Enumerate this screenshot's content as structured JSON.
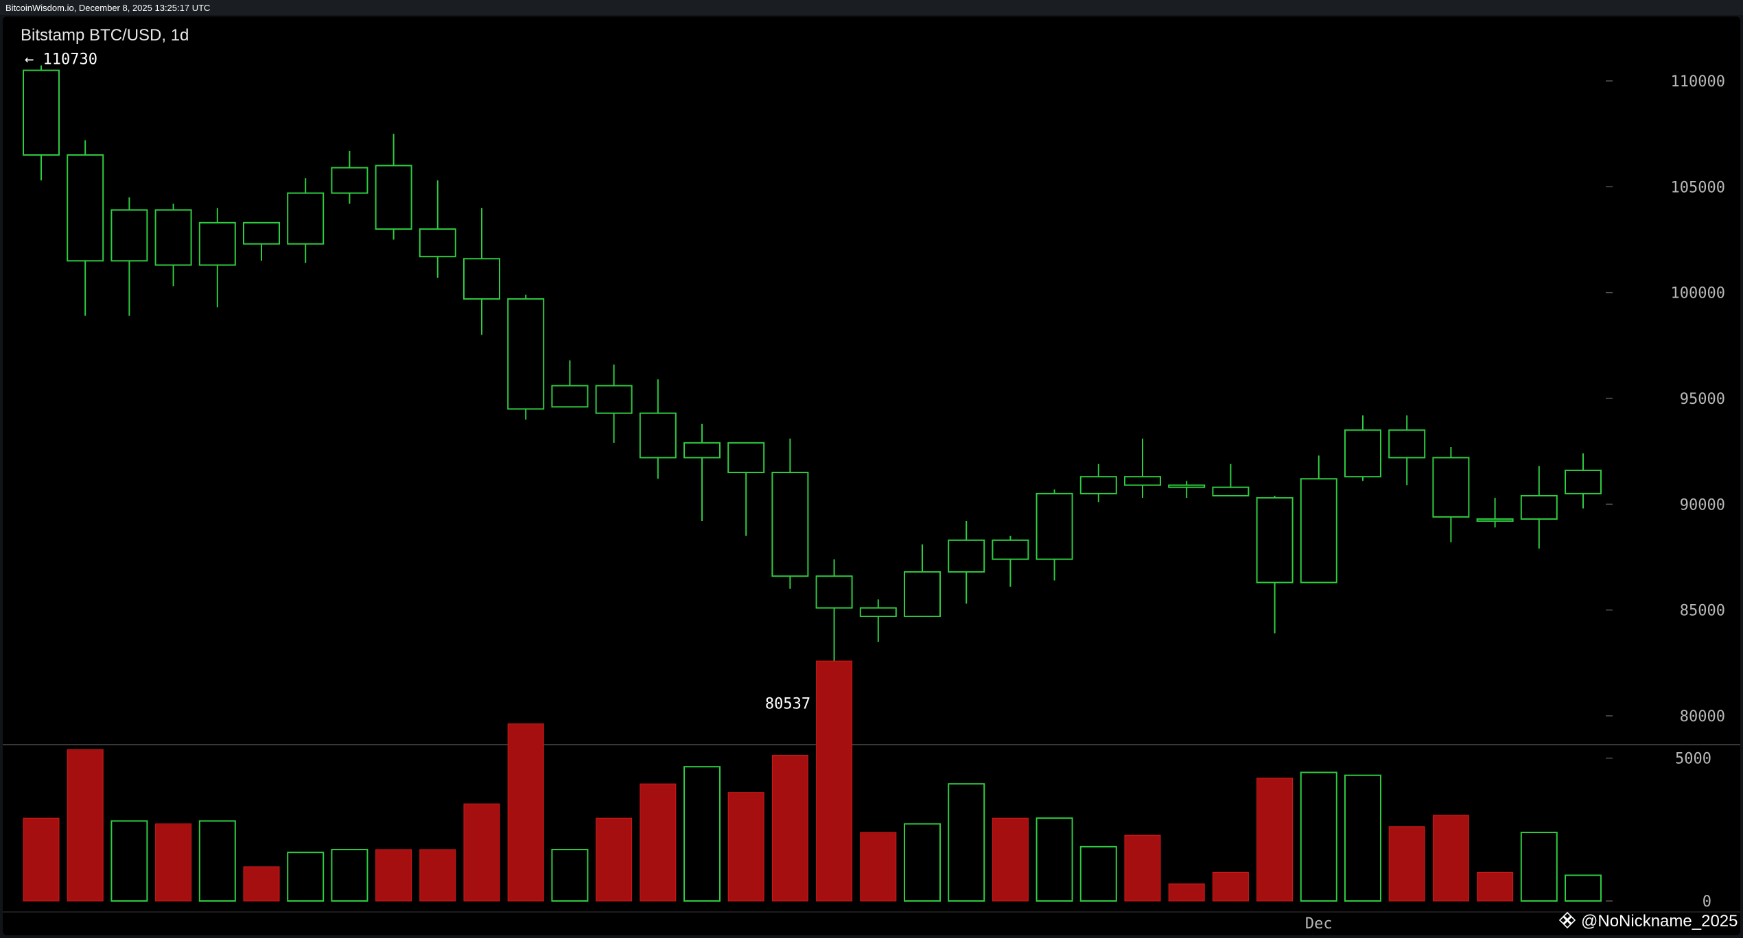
{
  "header": {
    "source_line": "BitcoinWisdom.io, December 8, 2025 13:25:17 UTC"
  },
  "chart": {
    "pair_title": "Bitstamp BTC/USD, 1d",
    "high_annotation": "← 110730",
    "low_annotation": "80537 →",
    "x_tick_label": "Dec",
    "watermark": "@NoNickname_2025",
    "watermark_icon": "diamond-logo-icon"
  },
  "colors": {
    "background": "#000000",
    "up": "#2ecc40",
    "down": "#a50f0f",
    "down_wick": "#d41a1a",
    "axis_text": "#b8b8b8"
  },
  "chart_data": [
    {
      "type": "candlestick",
      "title": "Bitstamp BTC/USD, 1d",
      "y_axis_side": "right",
      "ylim": [
        77500,
        113000
      ],
      "yticks": [
        80000,
        85000,
        90000,
        95000,
        100000,
        105000,
        110000
      ],
      "ytick_labels": [
        "80000",
        "85000",
        "90000",
        "95000",
        "100000",
        "105000",
        "110000"
      ],
      "x_tick": {
        "label": "Dec",
        "at_index": 29
      },
      "annotations": [
        {
          "label": "← 110730",
          "value": 110730,
          "index": 0
        },
        {
          "label": "80537 →",
          "value": 80537,
          "index": 18
        }
      ],
      "candles": [
        {
          "open": 106500,
          "high": 110730,
          "low": 105300,
          "close": 110500
        },
        {
          "open": 101500,
          "high": 107200,
          "low": 98900,
          "close": 106500
        },
        {
          "open": 101500,
          "high": 104500,
          "low": 98900,
          "close": 103900
        },
        {
          "open": 101300,
          "high": 104200,
          "low": 100300,
          "close": 103900
        },
        {
          "open": 101300,
          "high": 104000,
          "low": 99300,
          "close": 103300
        },
        {
          "open": 102300,
          "high": 103300,
          "low": 101500,
          "close": 103300
        },
        {
          "open": 102300,
          "high": 105400,
          "low": 101400,
          "close": 104700
        },
        {
          "open": 104700,
          "high": 106700,
          "low": 104200,
          "close": 105900
        },
        {
          "open": 103000,
          "high": 107500,
          "low": 102500,
          "close": 106000
        },
        {
          "open": 101700,
          "high": 105300,
          "low": 100700,
          "close": 103000
        },
        {
          "open": 99700,
          "high": 104000,
          "low": 98000,
          "close": 101600
        },
        {
          "open": 94500,
          "high": 99900,
          "low": 94000,
          "close": 99700
        },
        {
          "open": 94600,
          "high": 96800,
          "low": 94600,
          "close": 95600
        },
        {
          "open": 94300,
          "high": 96600,
          "low": 92900,
          "close": 95600
        },
        {
          "open": 92200,
          "high": 95900,
          "low": 91200,
          "close": 94300
        },
        {
          "open": 92200,
          "high": 93800,
          "low": 89200,
          "close": 92900
        },
        {
          "open": 91500,
          "high": 92900,
          "low": 88500,
          "close": 92900
        },
        {
          "open": 86600,
          "high": 93100,
          "low": 86000,
          "close": 91500
        },
        {
          "open": 85100,
          "high": 87400,
          "low": 80537,
          "close": 86600
        },
        {
          "open": 84700,
          "high": 85500,
          "low": 83500,
          "close": 85100
        },
        {
          "open": 84700,
          "high": 88100,
          "low": 84700,
          "close": 86800
        },
        {
          "open": 86800,
          "high": 89200,
          "low": 85300,
          "close": 88300
        },
        {
          "open": 87400,
          "high": 88500,
          "low": 86100,
          "close": 88300
        },
        {
          "open": 87400,
          "high": 90700,
          "low": 86400,
          "close": 90500
        },
        {
          "open": 90500,
          "high": 91900,
          "low": 90100,
          "close": 91300
        },
        {
          "open": 90900,
          "high": 93100,
          "low": 90300,
          "close": 91300
        },
        {
          "open": 90800,
          "high": 91100,
          "low": 90300,
          "close": 90900
        },
        {
          "open": 90400,
          "high": 91900,
          "low": 90400,
          "close": 90800
        },
        {
          "open": 86300,
          "high": 90400,
          "low": 83900,
          "close": 90300
        },
        {
          "open": 86300,
          "high": 92300,
          "low": 86300,
          "close": 91200
        },
        {
          "open": 91300,
          "high": 94200,
          "low": 91100,
          "close": 93500
        },
        {
          "open": 92200,
          "high": 94200,
          "low": 90900,
          "close": 93500
        },
        {
          "open": 89400,
          "high": 92700,
          "low": 88200,
          "close": 92200
        },
        {
          "open": 89300,
          "high": 90300,
          "low": 88900,
          "close": 89300
        },
        {
          "open": 89300,
          "high": 91800,
          "low": 87900,
          "close": 90400
        },
        {
          "open": 90500,
          "high": 92400,
          "low": 89800,
          "close": 91600
        }
      ]
    },
    {
      "type": "bar",
      "title": "",
      "ylim": [
        0,
        8400
      ],
      "yticks": [
        0,
        5000
      ],
      "ytick_labels": [
        "0",
        "5000"
      ],
      "values": [
        2900,
        5300,
        2800,
        2700,
        2800,
        1200,
        1700,
        1800,
        1800,
        1800,
        3400,
        6200,
        1800,
        2900,
        4100,
        4700,
        3800,
        5100,
        8400,
        2400,
        2700,
        4100,
        2900,
        2900,
        1900,
        2300,
        600,
        1000,
        4300,
        4500,
        4400,
        2600,
        3000,
        1000,
        2400,
        900
      ],
      "directions": [
        "down",
        "down",
        "up",
        "down",
        "up",
        "down",
        "up",
        "up",
        "down",
        "down",
        "down",
        "down",
        "up",
        "down",
        "down",
        "up",
        "down",
        "down",
        "down",
        "down",
        "up",
        "up",
        "down",
        "up",
        "up",
        "down",
        "down",
        "down",
        "down",
        "up",
        "up",
        "down",
        "down",
        "down",
        "up",
        "up"
      ]
    }
  ]
}
